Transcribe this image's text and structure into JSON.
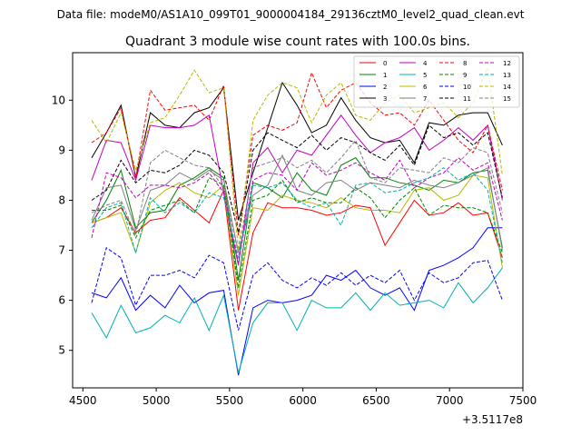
{
  "chart_data": {
    "type": "line",
    "suptitle": "Data file: modeM0/AS1A10_099T01_9000004184_29136cztM0_level2_quad_clean.evt",
    "title": "Quadrant 3 module wise count rates with 100.0s bins.",
    "xlabel": "",
    "ylabel": "",
    "x_offset_label": "+3.5117e8",
    "xlim": [
      4430,
      7500
    ],
    "ylim": [
      4.25,
      10.95
    ],
    "xticks": [
      4500,
      5000,
      5500,
      6000,
      6500,
      7000,
      7500
    ],
    "xtick_labels": [
      "4500",
      "5000",
      "5500",
      "6000",
      "6500",
      "7000",
      "7500"
    ],
    "yticks": [
      5,
      6,
      7,
      8,
      9,
      10
    ],
    "ytick_labels": [
      "5",
      "6",
      "7",
      "8",
      "9",
      "10"
    ],
    "legend_position": "top-right",
    "x": [
      4560,
      4660,
      4760,
      4860,
      4960,
      5060,
      5160,
      5260,
      5360,
      5460,
      5560,
      5660,
      5760,
      5860,
      5960,
      6060,
      6160,
      6260,
      6360,
      6460,
      6560,
      6660,
      6760,
      6860,
      6960,
      7060,
      7160,
      7260,
      7360
    ],
    "series": [
      {
        "name": "0",
        "color": "#ff0000",
        "dash": "solid",
        "values": [
          7.55,
          7.65,
          7.85,
          7.35,
          7.6,
          7.65,
          8.05,
          7.8,
          7.55,
          8.2,
          5.8,
          7.35,
          7.95,
          7.85,
          7.85,
          7.8,
          7.7,
          7.75,
          7.9,
          7.85,
          7.1,
          7.55,
          8.0,
          7.7,
          7.75,
          7.95,
          7.7,
          7.75,
          6.85
        ]
      },
      {
        "name": "1",
        "color": "#008000",
        "dash": "solid",
        "values": [
          7.55,
          8.0,
          8.6,
          7.45,
          7.75,
          7.8,
          8.3,
          8.45,
          8.65,
          8.45,
          6.4,
          8.35,
          8.25,
          8.05,
          8.55,
          8.2,
          8.1,
          8.7,
          8.85,
          8.45,
          8.45,
          8.35,
          8.3,
          8.2,
          8.4,
          8.35,
          8.55,
          8.6,
          7.05
        ]
      },
      {
        "name": "2",
        "color": "#0000ff",
        "dash": "solid",
        "values": [
          6.15,
          6.05,
          6.45,
          5.8,
          6.1,
          5.85,
          6.3,
          5.95,
          6.15,
          6.2,
          4.5,
          5.85,
          6.0,
          5.95,
          6.0,
          6.1,
          6.5,
          6.4,
          6.6,
          6.25,
          6.1,
          6.25,
          5.8,
          6.6,
          6.7,
          6.85,
          7.05,
          7.45,
          7.45
        ]
      },
      {
        "name": "3",
        "color": "#000000",
        "dash": "solid",
        "values": [
          8.85,
          9.35,
          9.9,
          8.45,
          9.75,
          9.5,
          9.45,
          9.75,
          9.85,
          10.25,
          7.6,
          8.55,
          9.45,
          10.35,
          9.9,
          9.35,
          9.5,
          10.05,
          9.6,
          9.25,
          9.15,
          9.2,
          8.75,
          9.55,
          9.5,
          9.7,
          9.75,
          9.75,
          9.1
        ]
      },
      {
        "name": "4",
        "color": "#c000c0",
        "dash": "solid",
        "values": [
          8.4,
          9.2,
          9.15,
          8.4,
          9.5,
          9.45,
          9.45,
          9.5,
          9.7,
          8.15,
          6.7,
          8.75,
          9.05,
          8.55,
          9.0,
          8.9,
          9.3,
          9.7,
          9.3,
          8.95,
          9.15,
          9.25,
          9.45,
          9.0,
          9.2,
          9.45,
          9.2,
          9.5,
          8.0
        ]
      },
      {
        "name": "5",
        "color": "#00b0b0",
        "dash": "solid",
        "values": [
          5.75,
          5.25,
          5.9,
          5.35,
          5.45,
          5.7,
          5.55,
          6.05,
          5.4,
          6.1,
          4.55,
          5.55,
          5.95,
          5.95,
          5.4,
          6.0,
          5.85,
          5.85,
          6.15,
          5.8,
          6.15,
          5.9,
          5.95,
          6.0,
          5.85,
          6.35,
          5.95,
          6.25,
          6.65
        ]
      },
      {
        "name": "6",
        "color": "#b8b800",
        "dash": "solid",
        "values": [
          7.55,
          7.65,
          7.75,
          6.95,
          7.95,
          8.2,
          8.35,
          8.15,
          8.05,
          8.3,
          6.1,
          7.85,
          7.8,
          8.1,
          8.0,
          7.95,
          7.85,
          8.05,
          7.85,
          7.8,
          7.8,
          7.75,
          8.2,
          8.25,
          8.0,
          8.1,
          8.5,
          8.45,
          6.65
        ]
      },
      {
        "name": "7",
        "color": "#808080",
        "dash": "solid",
        "values": [
          7.6,
          8.25,
          8.3,
          7.4,
          8.2,
          8.3,
          8.55,
          8.4,
          8.6,
          8.4,
          6.95,
          8.1,
          8.3,
          8.9,
          8.2,
          8.1,
          8.35,
          8.4,
          8.2,
          8.35,
          8.3,
          8.25,
          8.4,
          8.3,
          8.25,
          8.35,
          8.5,
          8.65,
          7.0
        ]
      },
      {
        "name": "8",
        "color": "#ff0000",
        "dash": "dashed",
        "values": [
          9.15,
          9.35,
          9.85,
          8.45,
          10.2,
          9.8,
          9.85,
          9.9,
          9.6,
          10.3,
          7.3,
          9.3,
          9.5,
          9.4,
          9.55,
          10.55,
          9.85,
          10.2,
          10.35,
          9.95,
          9.7,
          9.75,
          9.5,
          10.0,
          9.6,
          9.2,
          8.95,
          9.5,
          8.2
        ]
      },
      {
        "name": "9",
        "color": "#008000",
        "dash": "dashed",
        "values": [
          7.8,
          7.8,
          7.9,
          7.25,
          7.8,
          7.9,
          8.0,
          7.75,
          8.45,
          8.3,
          6.25,
          8.0,
          8.1,
          8.4,
          7.95,
          8.05,
          7.95,
          7.95,
          8.25,
          8.05,
          7.65,
          8.0,
          8.25,
          7.7,
          7.9,
          7.85,
          7.85,
          7.75,
          6.95
        ]
      },
      {
        "name": "10",
        "color": "#0000ff",
        "dash": "dashed",
        "values": [
          5.95,
          7.05,
          6.85,
          5.9,
          6.5,
          6.5,
          6.6,
          6.45,
          6.9,
          6.75,
          5.4,
          6.5,
          6.75,
          6.4,
          6.25,
          6.45,
          6.3,
          6.55,
          6.3,
          6.5,
          6.35,
          6.6,
          6.0,
          6.55,
          6.35,
          6.45,
          6.75,
          6.8,
          6.0
        ]
      },
      {
        "name": "11",
        "color": "#000000",
        "dash": "dashed",
        "values": [
          8.0,
          8.2,
          8.8,
          8.35,
          8.6,
          8.55,
          8.7,
          9.0,
          8.9,
          8.55,
          7.35,
          9.0,
          9.35,
          9.2,
          9.05,
          9.3,
          9.0,
          9.25,
          9.15,
          8.95,
          8.8,
          9.1,
          8.7,
          9.5,
          9.25,
          9.35,
          9.1,
          9.35,
          8.05
        ]
      },
      {
        "name": "12",
        "color": "#c000c0",
        "dash": "dashed",
        "values": [
          7.25,
          8.55,
          8.45,
          8.05,
          8.3,
          8.3,
          8.25,
          8.35,
          8.55,
          8.15,
          6.75,
          8.4,
          8.55,
          8.5,
          8.2,
          8.75,
          8.5,
          8.6,
          8.75,
          8.55,
          8.4,
          8.8,
          8.25,
          8.45,
          8.55,
          8.85,
          8.6,
          8.75,
          7.6
        ]
      },
      {
        "name": "13",
        "color": "#00b0b0",
        "dash": "dashed",
        "values": [
          7.45,
          7.85,
          7.95,
          6.95,
          8.05,
          7.75,
          7.95,
          7.75,
          8.15,
          8.05,
          6.85,
          8.3,
          8.25,
          8.35,
          8.0,
          7.85,
          7.95,
          7.5,
          8.3,
          8.35,
          8.15,
          8.2,
          8.35,
          8.45,
          8.65,
          8.4,
          8.55,
          8.2,
          6.75
        ]
      },
      {
        "name": "14",
        "color": "#b8b800",
        "dash": "dashed",
        "values": [
          9.6,
          9.15,
          9.75,
          8.6,
          9.55,
          9.65,
          10.1,
          10.6,
          10.15,
          10.25,
          7.0,
          9.6,
          10.1,
          10.35,
          10.25,
          9.55,
          10.1,
          10.35,
          9.7,
          9.6,
          9.95,
          10.1,
          9.75,
          9.85,
          9.95,
          9.65,
          9.95,
          10.65,
          8.5
        ]
      },
      {
        "name": "15",
        "color": "#808080",
        "dash": "dashed",
        "values": [
          7.75,
          7.9,
          8.0,
          7.3,
          8.75,
          9.0,
          8.85,
          8.7,
          8.65,
          8.25,
          6.95,
          8.65,
          8.75,
          8.85,
          8.65,
          8.8,
          8.55,
          8.85,
          9.2,
          8.45,
          8.35,
          8.65,
          8.6,
          8.55,
          8.85,
          8.75,
          9.05,
          8.95,
          7.75
        ]
      }
    ]
  }
}
